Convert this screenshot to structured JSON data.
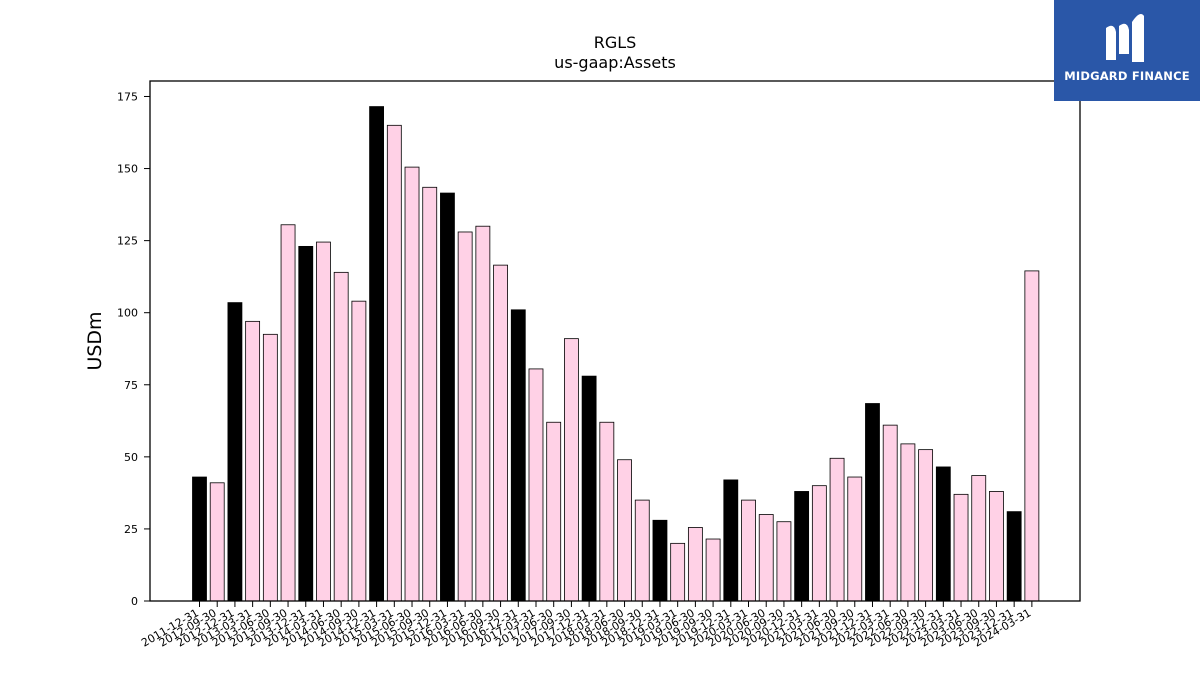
{
  "logo": {
    "text": "MIDGARD FINANCE"
  },
  "colors": {
    "annual": "#000000",
    "quarterly": "#ffd1e6",
    "edge": "#000000",
    "logo_bg": "#2a57a8"
  },
  "chart_data": {
    "type": "bar",
    "title": "RGLS",
    "subtitle": "us-gaap:Assets",
    "xlabel": "",
    "ylabel": "USDm",
    "ylim": [
      0,
      180
    ],
    "yticks": [
      0,
      25,
      50,
      75,
      100,
      125,
      150,
      175
    ],
    "grid": false,
    "categories": [
      "2011-12-31",
      "2012-09-30",
      "2012-12-31",
      "2013-03-31",
      "2013-06-30",
      "2013-09-30",
      "2013-12-31",
      "2014-03-31",
      "2014-06-30",
      "2014-09-30",
      "2014-12-31",
      "2015-03-31",
      "2015-06-30",
      "2015-09-30",
      "2015-12-31",
      "2016-03-31",
      "2016-06-30",
      "2016-09-30",
      "2016-12-31",
      "2017-03-31",
      "2017-06-30",
      "2017-09-30",
      "2017-12-31",
      "2018-03-31",
      "2018-06-30",
      "2018-09-30",
      "2018-12-31",
      "2019-03-31",
      "2019-06-30",
      "2019-09-30",
      "2019-12-31",
      "2020-03-31",
      "2020-06-30",
      "2020-09-30",
      "2020-12-31",
      "2021-03-31",
      "2021-06-30",
      "2021-09-30",
      "2021-12-31",
      "2022-03-31",
      "2022-06-30",
      "2022-09-30",
      "2022-12-31",
      "2023-03-31",
      "2023-06-30",
      "2023-09-30",
      "2023-12-31",
      "2024-03-31"
    ],
    "values": [
      43,
      41,
      103.5,
      97,
      92.5,
      130.5,
      123,
      124.5,
      114,
      104,
      171.5,
      165,
      150.5,
      143.5,
      141.5,
      128,
      130,
      116.5,
      101,
      80.5,
      62,
      91,
      78,
      62,
      49,
      35,
      28,
      20,
      25.5,
      21.5,
      42,
      35,
      30,
      27.5,
      38,
      40,
      49.5,
      43,
      68.5,
      61,
      54.5,
      52.5,
      46.5,
      37,
      43.5,
      38,
      31,
      114.5
    ],
    "annual": [
      true,
      false,
      true,
      false,
      false,
      false,
      true,
      false,
      false,
      false,
      true,
      false,
      false,
      false,
      true,
      false,
      false,
      false,
      true,
      false,
      false,
      false,
      true,
      false,
      false,
      false,
      true,
      false,
      false,
      false,
      true,
      false,
      false,
      false,
      true,
      false,
      false,
      false,
      true,
      false,
      false,
      false,
      true,
      false,
      false,
      false,
      true,
      false
    ]
  }
}
